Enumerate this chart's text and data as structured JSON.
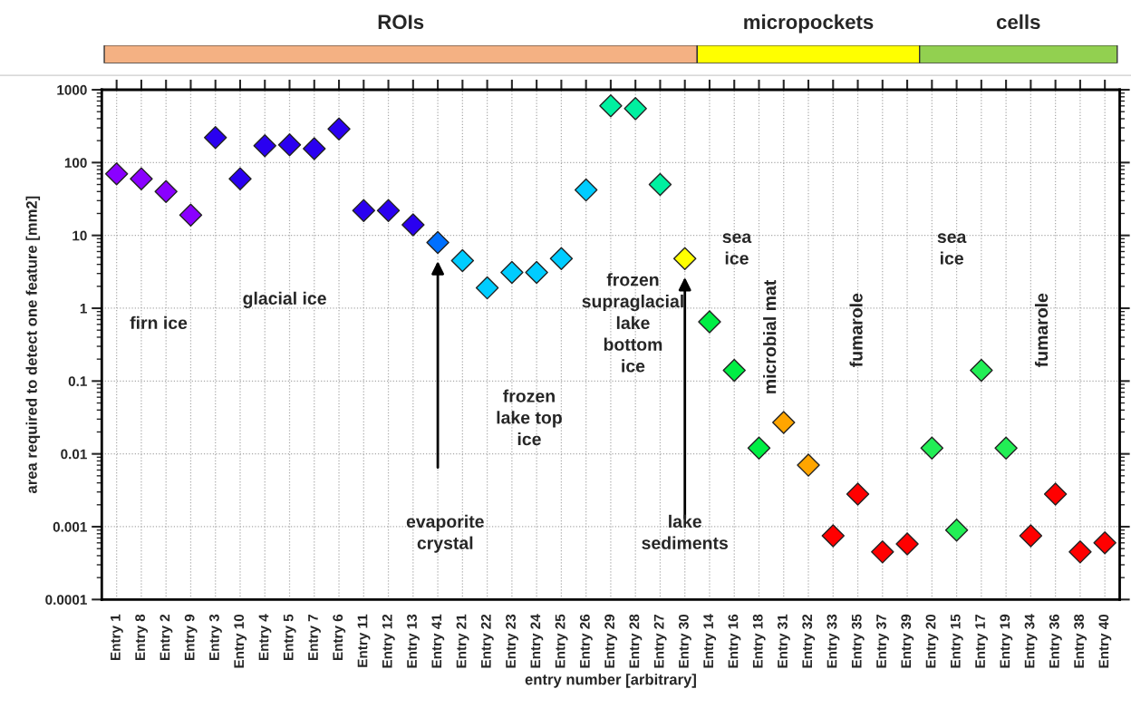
{
  "chart_data": {
    "type": "scatter",
    "xlabel": "entry number [arbitrary]",
    "ylabel": "area required to detect one feature [mm2]",
    "categories": [
      "Entry 1",
      "Entry 8",
      "Entry 2",
      "Entry 9",
      "Entry 3",
      "Entry 10",
      "Entry 4",
      "Entry 5",
      "Entry 7",
      "Entry 6",
      "Entry 11",
      "Entry 12",
      "Entry 13",
      "Entry 41",
      "Entry 21",
      "Entry 22",
      "Entry 23",
      "Entry 24",
      "Entry 25",
      "Entry 26",
      "Entry 29",
      "Entry 28",
      "Entry 27",
      "Entry 30",
      "Entry 14",
      "Entry 16",
      "Entry 18",
      "Entry 31",
      "Entry 32",
      "Entry 33",
      "Entry 35",
      "Entry 37",
      "Entry 39",
      "Entry 20",
      "Entry 15",
      "Entry 17",
      "Entry 19",
      "Entry 34",
      "Entry 36",
      "Entry 38",
      "Entry 40"
    ],
    "values": [
      70,
      60,
      40,
      19,
      220,
      60,
      170,
      175,
      155,
      290,
      22,
      22,
      14,
      8,
      4.5,
      1.9,
      3.1,
      3.1,
      4.8,
      42,
      600,
      550,
      50,
      4.8,
      0.65,
      0.14,
      0.012,
      0.027,
      0.007,
      0.00075,
      0.0028,
      0.00045,
      0.00058,
      0.012,
      0.0009,
      0.14,
      0.012,
      0.00075,
      0.0028,
      0.00045,
      0.0006
    ],
    "colors": [
      "#8a00ff",
      "#8a00ff",
      "#8a00ff",
      "#8a00ff",
      "#2a00f0",
      "#2a00f0",
      "#2a00f0",
      "#2a00f0",
      "#2a00f0",
      "#2a00f0",
      "#2a00f0",
      "#2a00f0",
      "#2a00f0",
      "#0070ff",
      "#00ccff",
      "#00ccff",
      "#00ccff",
      "#00ccff",
      "#00ccff",
      "#00ccff",
      "#00f0a0",
      "#00f0a0",
      "#00f0a0",
      "#ffff00",
      "#00ee44",
      "#00ee44",
      "#00ee44",
      "#ffa500",
      "#ffa500",
      "#ff0000",
      "#ff0000",
      "#ff0000",
      "#ff0000",
      "#22ee55",
      "#22ee55",
      "#22ee55",
      "#22ee55",
      "#ff0000",
      "#ff0000",
      "#ff0000",
      "#ff0000"
    ],
    "marker": "diamond",
    "log": "y",
    "ylim": [
      0.0001,
      1000
    ],
    "yticks": [
      0.0001,
      0.001,
      0.01,
      0.1,
      1,
      10,
      100,
      1000
    ],
    "grid": true,
    "annotations": [
      "ROIs",
      "micropockets",
      "cells",
      "firn ice",
      "glacial ice",
      "evaporite\ncrystal",
      "frozen\nlake top\nice",
      "frozen\nsupraglacial\nlake\nbottom\nice",
      "lake\nsediments",
      "sea\nice",
      "microbial mat",
      "fumarole",
      "sea\nice",
      "fumarole"
    ]
  }
}
